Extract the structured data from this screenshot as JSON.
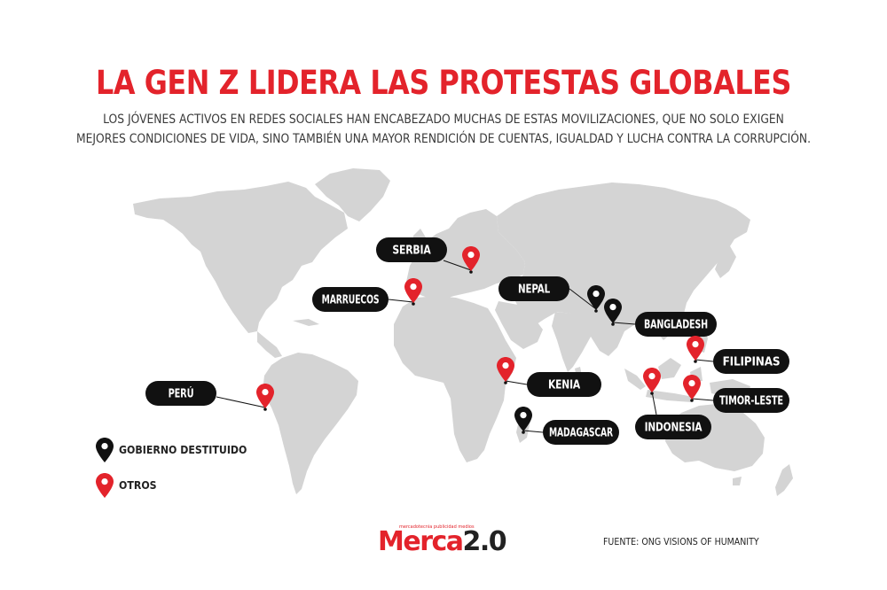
{
  "title": "LA GEN Z LIDERA LAS PROTESTAS GLOBALES",
  "subtitle": {
    "line1": "LOS JÓVENES ACTIVOS EN REDES SOCIALES HAN ENCABEZADO MUCHAS DE ESTAS MOVILIZACIONES, QUE NO SOLO EXIGEN",
    "line2": "MEJORES CONDICIONES DE VIDA, SINO TAMBIÉN UNA MAYOR RENDICIÓN DE CUENTAS, IGUALDAD Y LUCHA CONTRA LA CORRUPCIÓN."
  },
  "colors": {
    "accent": "#e3232b",
    "land": "#d4d4d4",
    "label_bg": "#111111",
    "black_pin": "#111111"
  },
  "countries": [
    {
      "name": "SERBIA",
      "pin": "red"
    },
    {
      "name": "MARRUECOS",
      "pin": "red"
    },
    {
      "name": "NEPAL",
      "pin": "black"
    },
    {
      "name": "BANGLADESH",
      "pin": "black"
    },
    {
      "name": "FILIPINAS",
      "pin": "red"
    },
    {
      "name": "KENIA",
      "pin": "red"
    },
    {
      "name": "TIMOR-LESTE",
      "pin": "red"
    },
    {
      "name": "PERÚ",
      "pin": "red"
    },
    {
      "name": "MADAGASCAR",
      "pin": "black"
    },
    {
      "name": "INDONESIA",
      "pin": "red"
    }
  ],
  "legend": {
    "black": "GOBIERNO DESTITUIDO",
    "red": "OTROS"
  },
  "logo": {
    "tagline": "mercadotecnia publicidad medios",
    "brand_main": "Merca",
    "brand_version": "2.0"
  },
  "source": "FUENTE:  ONG VISIONS OF HUMANITY"
}
